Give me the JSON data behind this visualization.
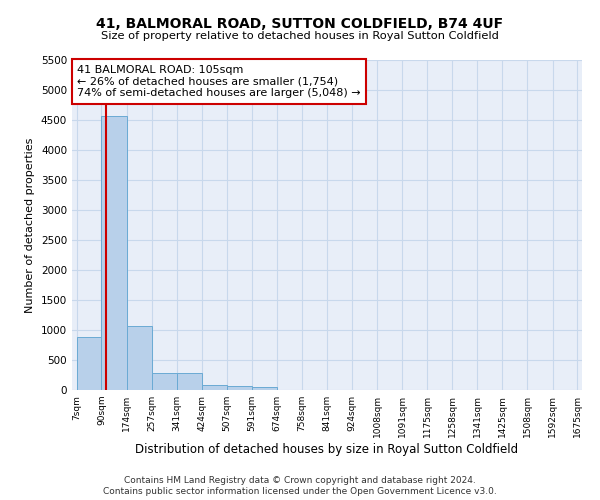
{
  "title": "41, BALMORAL ROAD, SUTTON COLDFIELD, B74 4UF",
  "subtitle": "Size of property relative to detached houses in Royal Sutton Coldfield",
  "xlabel": "Distribution of detached houses by size in Royal Sutton Coldfield",
  "ylabel": "Number of detached properties",
  "footnote1": "Contains HM Land Registry data © Crown copyright and database right 2024.",
  "footnote2": "Contains public sector information licensed under the Open Government Licence v3.0.",
  "bin_edges": [
    7,
    90,
    174,
    257,
    341,
    424,
    507,
    591,
    674,
    758,
    841,
    924,
    1008,
    1091,
    1175,
    1258,
    1341,
    1425,
    1508,
    1592,
    1675
  ],
  "bar_heights": [
    880,
    4560,
    1060,
    290,
    280,
    90,
    70,
    50,
    0,
    0,
    0,
    0,
    0,
    0,
    0,
    0,
    0,
    0,
    0,
    0
  ],
  "bar_color": "#b8d0ea",
  "bar_edge_color": "#6aaad4",
  "property_size": 105,
  "annotation_line_color": "#cc0000",
  "annotation_box_color": "#cc0000",
  "annotation_text_line1": "41 BALMORAL ROAD: 105sqm",
  "annotation_text_line2": "← 26% of detached houses are smaller (1,754)",
  "annotation_text_line3": "74% of semi-detached houses are larger (5,048) →",
  "ylim_max": 5500,
  "yticks": [
    0,
    500,
    1000,
    1500,
    2000,
    2500,
    3000,
    3500,
    4000,
    4500,
    5000,
    5500
  ],
  "grid_color": "#c8d8ec",
  "bg_color": "#e8eef8"
}
